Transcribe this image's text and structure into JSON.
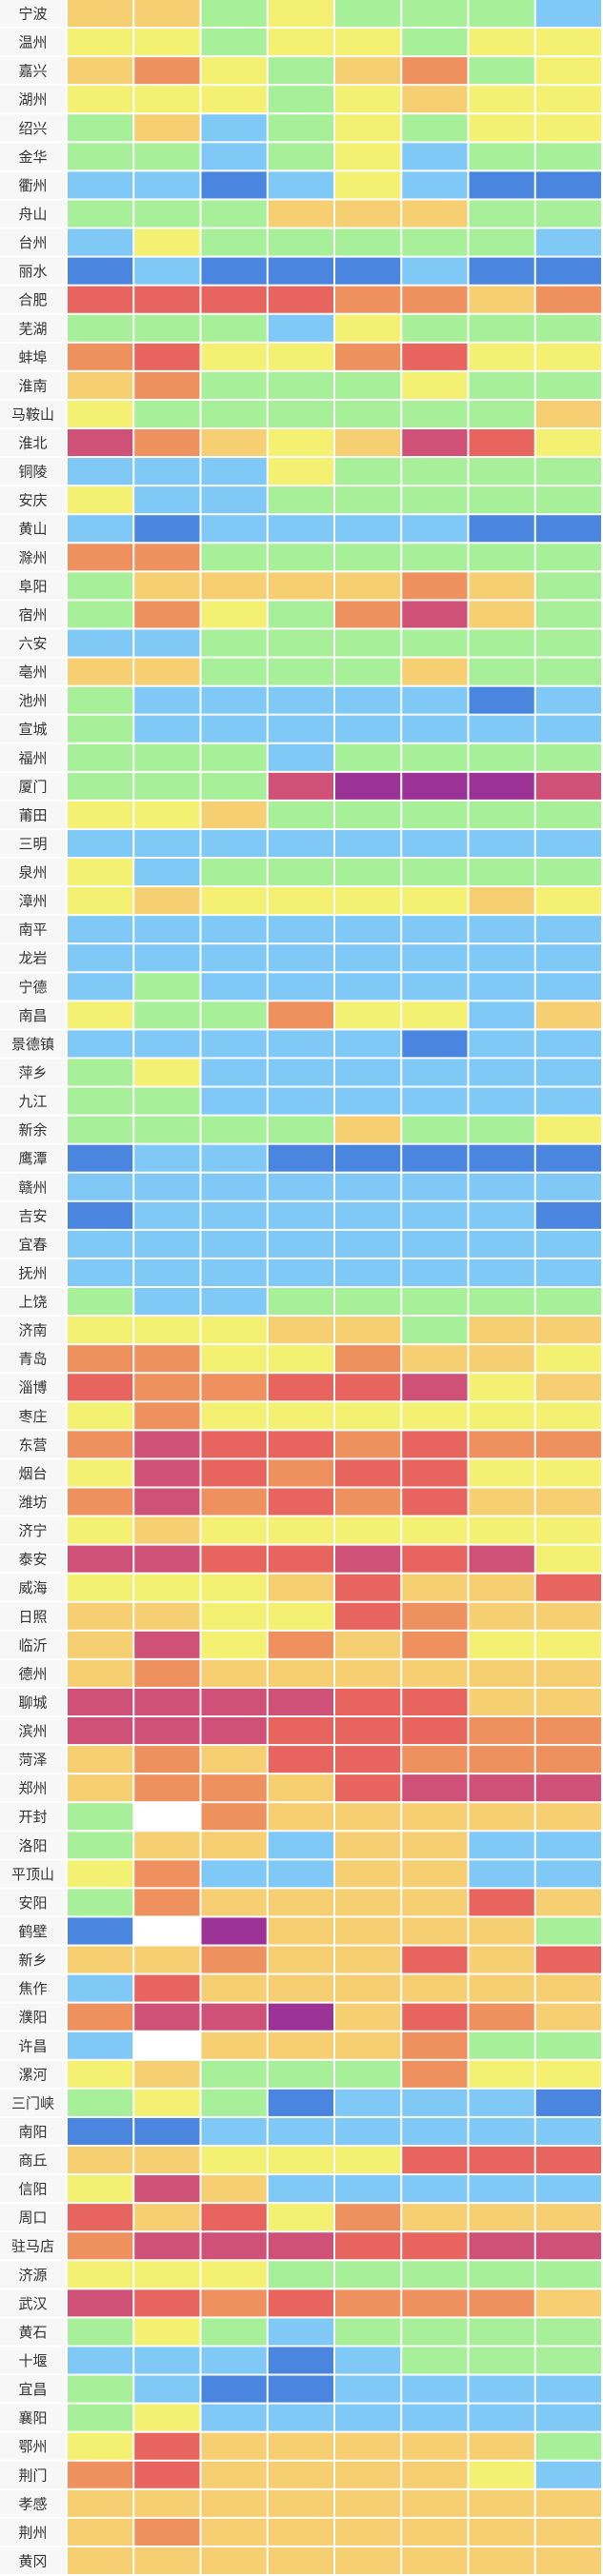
{
  "palette": {
    "G": "#a7ef98",
    "Y": "#f3f072",
    "L": "#f5cf72",
    "O": "#ee915f",
    "R": "#e8645e",
    "P": "#d05177",
    "V": "#9b3397",
    "B": "#4a86e0",
    "C": "#80c9f6",
    "W": "#ffffff"
  },
  "rows": [
    {
      "city": "宁波",
      "cells": "LLGYGGGC"
    },
    {
      "city": "温州",
      "cells": "YYGYYGYY"
    },
    {
      "city": "嘉兴",
      "cells": "LOYGLOGY"
    },
    {
      "city": "湖州",
      "cells": "YYYGYLYY"
    },
    {
      "city": "绍兴",
      "cells": "GLCGYGYY"
    },
    {
      "city": "金华",
      "cells": "GGCGYCGG"
    },
    {
      "city": "衢州",
      "cells": "CCBCYCBB"
    },
    {
      "city": "舟山",
      "cells": "GGGLLLGG"
    },
    {
      "city": "台州",
      "cells": "CYGGGGGC"
    },
    {
      "city": "丽水",
      "cells": "BCBBBCBB"
    },
    {
      "city": "合肥",
      "cells": "RRRROOLO"
    },
    {
      "city": "芜湖",
      "cells": "GGGCYGGG"
    },
    {
      "city": "蚌埠",
      "cells": "ORYYORYY"
    },
    {
      "city": "淮南",
      "cells": "LOGGGYGG"
    },
    {
      "city": "马鞍山",
      "cells": "YGGGGGGL"
    },
    {
      "city": "淮北",
      "cells": "POLYLPRY"
    },
    {
      "city": "铜陵",
      "cells": "CCCYGGGG"
    },
    {
      "city": "安庆",
      "cells": "YCCGGGGG"
    },
    {
      "city": "黄山",
      "cells": "CBCCCCBB"
    },
    {
      "city": "滁州",
      "cells": "OOGGGGGG"
    },
    {
      "city": "阜阳",
      "cells": "GLLLLOLG"
    },
    {
      "city": "宿州",
      "cells": "GOYGOPLG"
    },
    {
      "city": "六安",
      "cells": "CCGGGGGG"
    },
    {
      "city": "亳州",
      "cells": "LLGGGLGG"
    },
    {
      "city": "池州",
      "cells": "GCCCCCBC"
    },
    {
      "city": "宣城",
      "cells": "GCCCCCCC"
    },
    {
      "city": "福州",
      "cells": "GGGCGGGG"
    },
    {
      "city": "厦门",
      "cells": "GGGPVVVP"
    },
    {
      "city": "莆田",
      "cells": "YYLGGGGG"
    },
    {
      "city": "三明",
      "cells": "CCCCCCCC"
    },
    {
      "city": "泉州",
      "cells": "YCGGGGGG"
    },
    {
      "city": "漳州",
      "cells": "YLYYYYLY"
    },
    {
      "city": "南平",
      "cells": "CCCCCCCC"
    },
    {
      "city": "龙岩",
      "cells": "CCCCCCCC"
    },
    {
      "city": "宁德",
      "cells": "CGCCCCCC"
    },
    {
      "city": "南昌",
      "cells": "YGGOYYCL"
    },
    {
      "city": "景德镇",
      "cells": "CCCCCBCC"
    },
    {
      "city": "萍乡",
      "cells": "GYCCCCCC"
    },
    {
      "city": "九江",
      "cells": "GGCCCCCC"
    },
    {
      "city": "新余",
      "cells": "GGGGLGGY"
    },
    {
      "city": "鹰潭",
      "cells": "BCCBBBBB"
    },
    {
      "city": "赣州",
      "cells": "CCCCCCCC"
    },
    {
      "city": "吉安",
      "cells": "BCCCCCCB"
    },
    {
      "city": "宜春",
      "cells": "CCCCCCCC"
    },
    {
      "city": "抚州",
      "cells": "CCCCCCCC"
    },
    {
      "city": "上饶",
      "cells": "GCCGGGGG"
    },
    {
      "city": "济南",
      "cells": "YYYLLGLL"
    },
    {
      "city": "青岛",
      "cells": "OOYYOLLY"
    },
    {
      "city": "淄博",
      "cells": "ROORRPYL"
    },
    {
      "city": "枣庄",
      "cells": "YOYYYYYY"
    },
    {
      "city": "东营",
      "cells": "OPRRORO O"
    },
    {
      "city": "烟台",
      "cells": "YPRORRYY"
    },
    {
      "city": "潍坊",
      "cells": "OPOROR LL"
    },
    {
      "city": "济宁",
      "cells": "YLYYYYYY"
    },
    {
      "city": "泰安",
      "cells": "PPRRPRPY"
    },
    {
      "city": "威海",
      "cells": "YYYLRLLR"
    },
    {
      "city": "日照",
      "cells": "LLYYROLL"
    },
    {
      "city": "临沂",
      "cells": "LPYOLOYY"
    },
    {
      "city": "德州",
      "cells": "LOLLLLLL"
    },
    {
      "city": "聊城",
      "cells": "PPPPRRLL"
    },
    {
      "city": "滨州",
      "cells": "PPPRRROO"
    },
    {
      "city": "菏泽",
      "cells": "LOLRROOO"
    },
    {
      "city": "郑州",
      "cells": "LOOLRPPP"
    },
    {
      "city": "开封",
      "cells": "GWOLLLLL"
    },
    {
      "city": "洛阳",
      "cells": "GLLCLLCC"
    },
    {
      "city": "平顶山",
      "cells": "YOCCLLCC"
    },
    {
      "city": "安阳",
      "cells": "GOLLLLRL"
    },
    {
      "city": "鹤壁",
      "cells": "BWVLLLLG"
    },
    {
      "city": "新乡",
      "cells": "LLOLLRLR"
    },
    {
      "city": "焦作",
      "cells": "CRLLLLLL"
    },
    {
      "city": "濮阳",
      "cells": "OPPVLROL"
    },
    {
      "city": "许昌",
      "cells": "CWLLLOGG"
    },
    {
      "city": "漯河",
      "cells": "YLGGGOYY"
    },
    {
      "city": "三门峡",
      "cells": "GYGBCCCB"
    },
    {
      "city": "南阳",
      "cells": "BBCCCCCC"
    },
    {
      "city": "商丘",
      "cells": "LLYYYRRR"
    },
    {
      "city": "信阳",
      "cells": "YPLCCCCC"
    },
    {
      "city": "周口",
      "cells": "RLRYOLLL"
    },
    {
      "city": "驻马店",
      "cells": "OPPPRRPP"
    },
    {
      "city": "济源",
      "cells": "YYYGGGGG"
    },
    {
      "city": "武汉",
      "cells": "PRORO OOL"
    },
    {
      "city": "黄石",
      "cells": "GYGCGGGG"
    },
    {
      "city": "十堰",
      "cells": "CCCBCGGG"
    },
    {
      "city": "宜昌",
      "cells": "GCBBCCCC"
    },
    {
      "city": "襄阳",
      "cells": "GYCCCCCC"
    },
    {
      "city": "鄂州",
      "cells": "YRLLLLLG"
    },
    {
      "city": "荆门",
      "cells": "ORLLLLYC"
    },
    {
      "city": "孝感",
      "cells": "LLLLLLLL"
    },
    {
      "city": "荆州",
      "cells": "LOLLLLLL"
    },
    {
      "city": "黄冈",
      "cells": "LLLLLLLL"
    }
  ]
}
